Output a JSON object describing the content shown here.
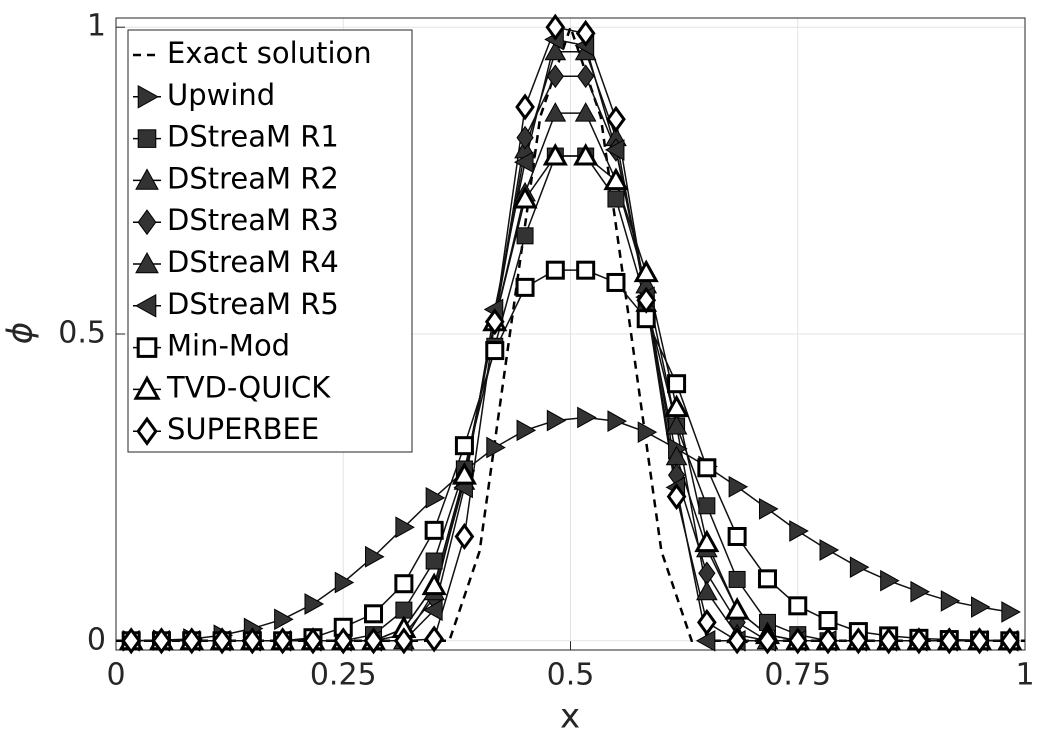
{
  "chart_data": {
    "type": "line",
    "x_label": "x",
    "y_label": "ϕ",
    "xlim": [
      0,
      1
    ],
    "ylim": [
      -0.015,
      1.015
    ],
    "xticks": [
      0,
      0.25,
      0.5,
      0.75,
      1
    ],
    "yticks": [
      0,
      0.5,
      1
    ],
    "grid": true,
    "legend": "upper left",
    "x": [
      0.0167,
      0.05,
      0.0833,
      0.1167,
      0.15,
      0.1833,
      0.2167,
      0.25,
      0.2833,
      0.3167,
      0.35,
      0.3833,
      0.4167,
      0.45,
      0.4833,
      0.5167,
      0.55,
      0.5833,
      0.6167,
      0.65,
      0.6833,
      0.7167,
      0.75,
      0.7833,
      0.8167,
      0.85,
      0.8833,
      0.9167,
      0.95,
      0.9833
    ],
    "series": [
      {
        "name": "Exact solution",
        "color": "#000000",
        "dashed": true,
        "marker": "none",
        "x": [
          0,
          0.3667,
          0.4,
          0.4333,
          0.4667,
          0.5,
          0.5333,
          0.5667,
          0.6,
          0.6333,
          1
        ],
        "values": [
          0,
          0,
          0.146,
          0.5,
          0.854,
          1,
          0.854,
          0.5,
          0.146,
          0,
          0
        ]
      },
      {
        "name": "Upwind",
        "color": "#333333",
        "marker": "triangle-right",
        "filled": true,
        "values": [
          0,
          0.001,
          0.003,
          0.009,
          0.02,
          0.035,
          0.06,
          0.095,
          0.137,
          0.185,
          0.233,
          0.277,
          0.315,
          0.343,
          0.359,
          0.364,
          0.358,
          0.34,
          0.313,
          0.284,
          0.251,
          0.215,
          0.179,
          0.148,
          0.12,
          0.098,
          0.08,
          0.065,
          0.055,
          0.047
        ]
      },
      {
        "name": "DStreaM R1",
        "color": "#333333",
        "marker": "square",
        "filled": true,
        "values": [
          0,
          0,
          0,
          0,
          0,
          0,
          0,
          0,
          0.01,
          0.05,
          0.13,
          0.28,
          0.48,
          0.66,
          0.79,
          0.79,
          0.72,
          0.55,
          0.35,
          0.22,
          0.1,
          0.03,
          0.01,
          0,
          0,
          0,
          0,
          0,
          0,
          0
        ]
      },
      {
        "name": "DStreaM R2",
        "color": "#333333",
        "marker": "triangle-up",
        "filled": true,
        "values": [
          0,
          0,
          0,
          0,
          0,
          0,
          0,
          0,
          0,
          0.02,
          0.09,
          0.27,
          0.52,
          0.8,
          0.96,
          0.96,
          0.82,
          0.55,
          0.3,
          0.15,
          0.05,
          0.01,
          0,
          0,
          0,
          0,
          0,
          0,
          0,
          0
        ]
      },
      {
        "name": "DStreaM R3",
        "color": "#333333",
        "marker": "diamond",
        "filled": true,
        "values": [
          0,
          0,
          0,
          0,
          0,
          0,
          0,
          0,
          0,
          0.01,
          0.07,
          0.27,
          0.52,
          0.82,
          0.92,
          0.92,
          0.8,
          0.57,
          0.27,
          0.11,
          0.03,
          0,
          0,
          0,
          0,
          0,
          0,
          0,
          0,
          0
        ]
      },
      {
        "name": "DStreaM R4",
        "color": "#333333",
        "marker": "triangle-up",
        "filled": true,
        "values": [
          0,
          0,
          0,
          0,
          0,
          0,
          0,
          0,
          0,
          0,
          0.08,
          0.26,
          0.52,
          0.73,
          0.86,
          0.86,
          0.75,
          0.58,
          0.35,
          0.08,
          0.01,
          0,
          0,
          0,
          0,
          0,
          0,
          0,
          0,
          0
        ]
      },
      {
        "name": "DStreaM R5",
        "color": "#333333",
        "marker": "triangle-left",
        "filled": true,
        "values": [
          0,
          0,
          0,
          0,
          0,
          0,
          0,
          0,
          0,
          0,
          0.05,
          0.25,
          0.54,
          0.78,
          0.98,
          0.97,
          0.8,
          0.56,
          0.25,
          0,
          0,
          0,
          0,
          0,
          0,
          0,
          0,
          0,
          0,
          0
        ]
      },
      {
        "name": "Min-Mod",
        "color": "#000000",
        "marker": "square",
        "filled": false,
        "values": [
          0,
          0,
          0,
          0,
          0,
          0,
          0.005,
          0.022,
          0.044,
          0.093,
          0.18,
          0.318,
          0.473,
          0.576,
          0.604,
          0.604,
          0.584,
          0.525,
          0.419,
          0.282,
          0.17,
          0.101,
          0.057,
          0.033,
          0.015,
          0.008,
          0.004,
          0.002,
          0.001,
          0
        ]
      },
      {
        "name": "TVD-QUICK",
        "color": "#000000",
        "marker": "triangle-up",
        "filled": false,
        "values": [
          0,
          0,
          0,
          0,
          0,
          0,
          0,
          0,
          0,
          0.02,
          0.09,
          0.27,
          0.52,
          0.72,
          0.79,
          0.79,
          0.75,
          0.6,
          0.38,
          0.16,
          0.05,
          0.01,
          0,
          0,
          0,
          0,
          0,
          0,
          0,
          0
        ]
      },
      {
        "name": "SUPERBEE",
        "color": "#000000",
        "marker": "diamond",
        "filled": false,
        "values": [
          0,
          0,
          0,
          0,
          0,
          0,
          0,
          0,
          0,
          0,
          0.003,
          0.17,
          0.52,
          0.87,
          1,
          0.99,
          0.85,
          0.555,
          0.235,
          0.03,
          0,
          0,
          0,
          0,
          0,
          0,
          0,
          0,
          0,
          0
        ]
      }
    ]
  }
}
